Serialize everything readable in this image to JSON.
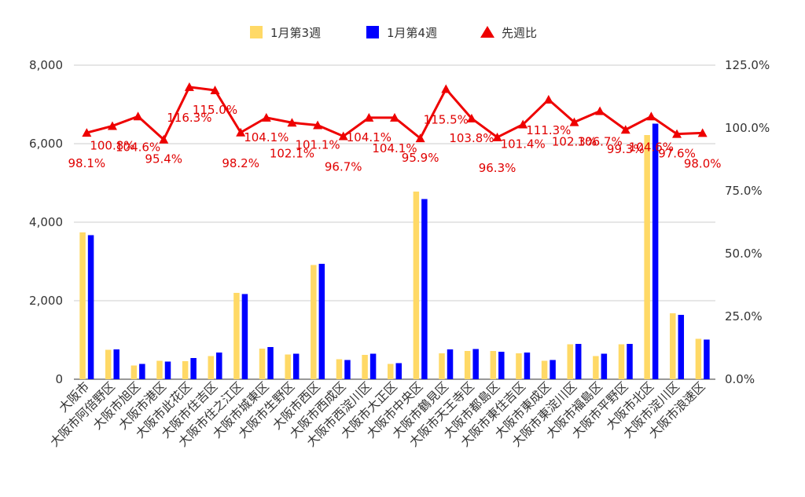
{
  "chart_data": {
    "type": "bar",
    "combo": "bar+line",
    "categories": [
      "大阪市",
      "大阪市阿倍野区",
      "大阪市旭区",
      "大阪市港区",
      "大阪市此花区",
      "大阪市住吉区",
      "大阪市住之江区",
      "大阪市城東区",
      "大阪市生野区",
      "大阪市西区",
      "大阪市西成区",
      "大阪市西淀川区",
      "大阪市大正区",
      "大阪市中央区",
      "大阪市鶴見区",
      "大阪市天王寺区",
      "大阪市都島区",
      "大阪市東住吉区",
      "大阪市東成区",
      "大阪市東淀川区",
      "大阪市福島区",
      "大阪市平野区",
      "大阪市北区",
      "大阪市淀川区",
      "大阪市浪速区"
    ],
    "series": [
      {
        "name": "1月第3週",
        "kind": "bar",
        "axis": "left",
        "color": "#FFD966",
        "values": [
          3740,
          750,
          350,
          470,
          460,
          590,
          2200,
          780,
          630,
          2910,
          510,
          620,
          390,
          4780,
          660,
          720,
          720,
          660,
          470,
          890,
          590,
          890,
          6220,
          1680,
          1030
        ]
      },
      {
        "name": "1月第4週",
        "kind": "bar",
        "axis": "left",
        "color": "#0000FF",
        "values": [
          3670,
          760,
          390,
          450,
          540,
          680,
          2170,
          820,
          650,
          2940,
          490,
          650,
          410,
          4590,
          760,
          770,
          700,
          680,
          490,
          900,
          650,
          900,
          6510,
          1640,
          1010
        ]
      },
      {
        "name": "先週比",
        "kind": "line",
        "axis": "right",
        "color": "#EE0000",
        "marker": "triangle",
        "values": [
          98.1,
          100.8,
          104.6,
          95.4,
          116.3,
          115.0,
          98.2,
          104.1,
          102.1,
          101.1,
          96.7,
          104.1,
          104.1,
          95.9,
          115.5,
          103.8,
          96.3,
          101.4,
          111.3,
          102.3,
          106.7,
          99.3,
          104.6,
          97.6,
          98.0
        ],
        "labels": [
          "98.1%",
          "100.8%",
          "104.6%",
          "95.4%",
          "116.3%",
          "115.0%",
          "98.2%",
          "104.1%",
          "102.1%",
          "101.1%",
          "96.7%",
          "104.1%",
          "104.1%",
          "95.9%",
          "115.5%",
          "103.8%",
          "96.3%",
          "101.4%",
          "111.3%",
          "102.3%",
          "106.7%",
          "99.3%",
          "104.6%",
          "97.6%",
          "98.0%"
        ]
      }
    ],
    "y_left": {
      "range": [
        0,
        8000
      ],
      "ticks": [
        "0",
        "2,000",
        "4,000",
        "6,000",
        "8,000"
      ],
      "tick_values": [
        0,
        2000,
        4000,
        6000,
        8000
      ]
    },
    "y_right": {
      "range": [
        0,
        125
      ],
      "ticks": [
        "0.0%",
        "25.0%",
        "50.0%",
        "75.0%",
        "100.0%",
        "125.0%"
      ],
      "tick_values": [
        0,
        25,
        50,
        75,
        100,
        125
      ]
    },
    "grid": true,
    "legend_position": "top"
  }
}
